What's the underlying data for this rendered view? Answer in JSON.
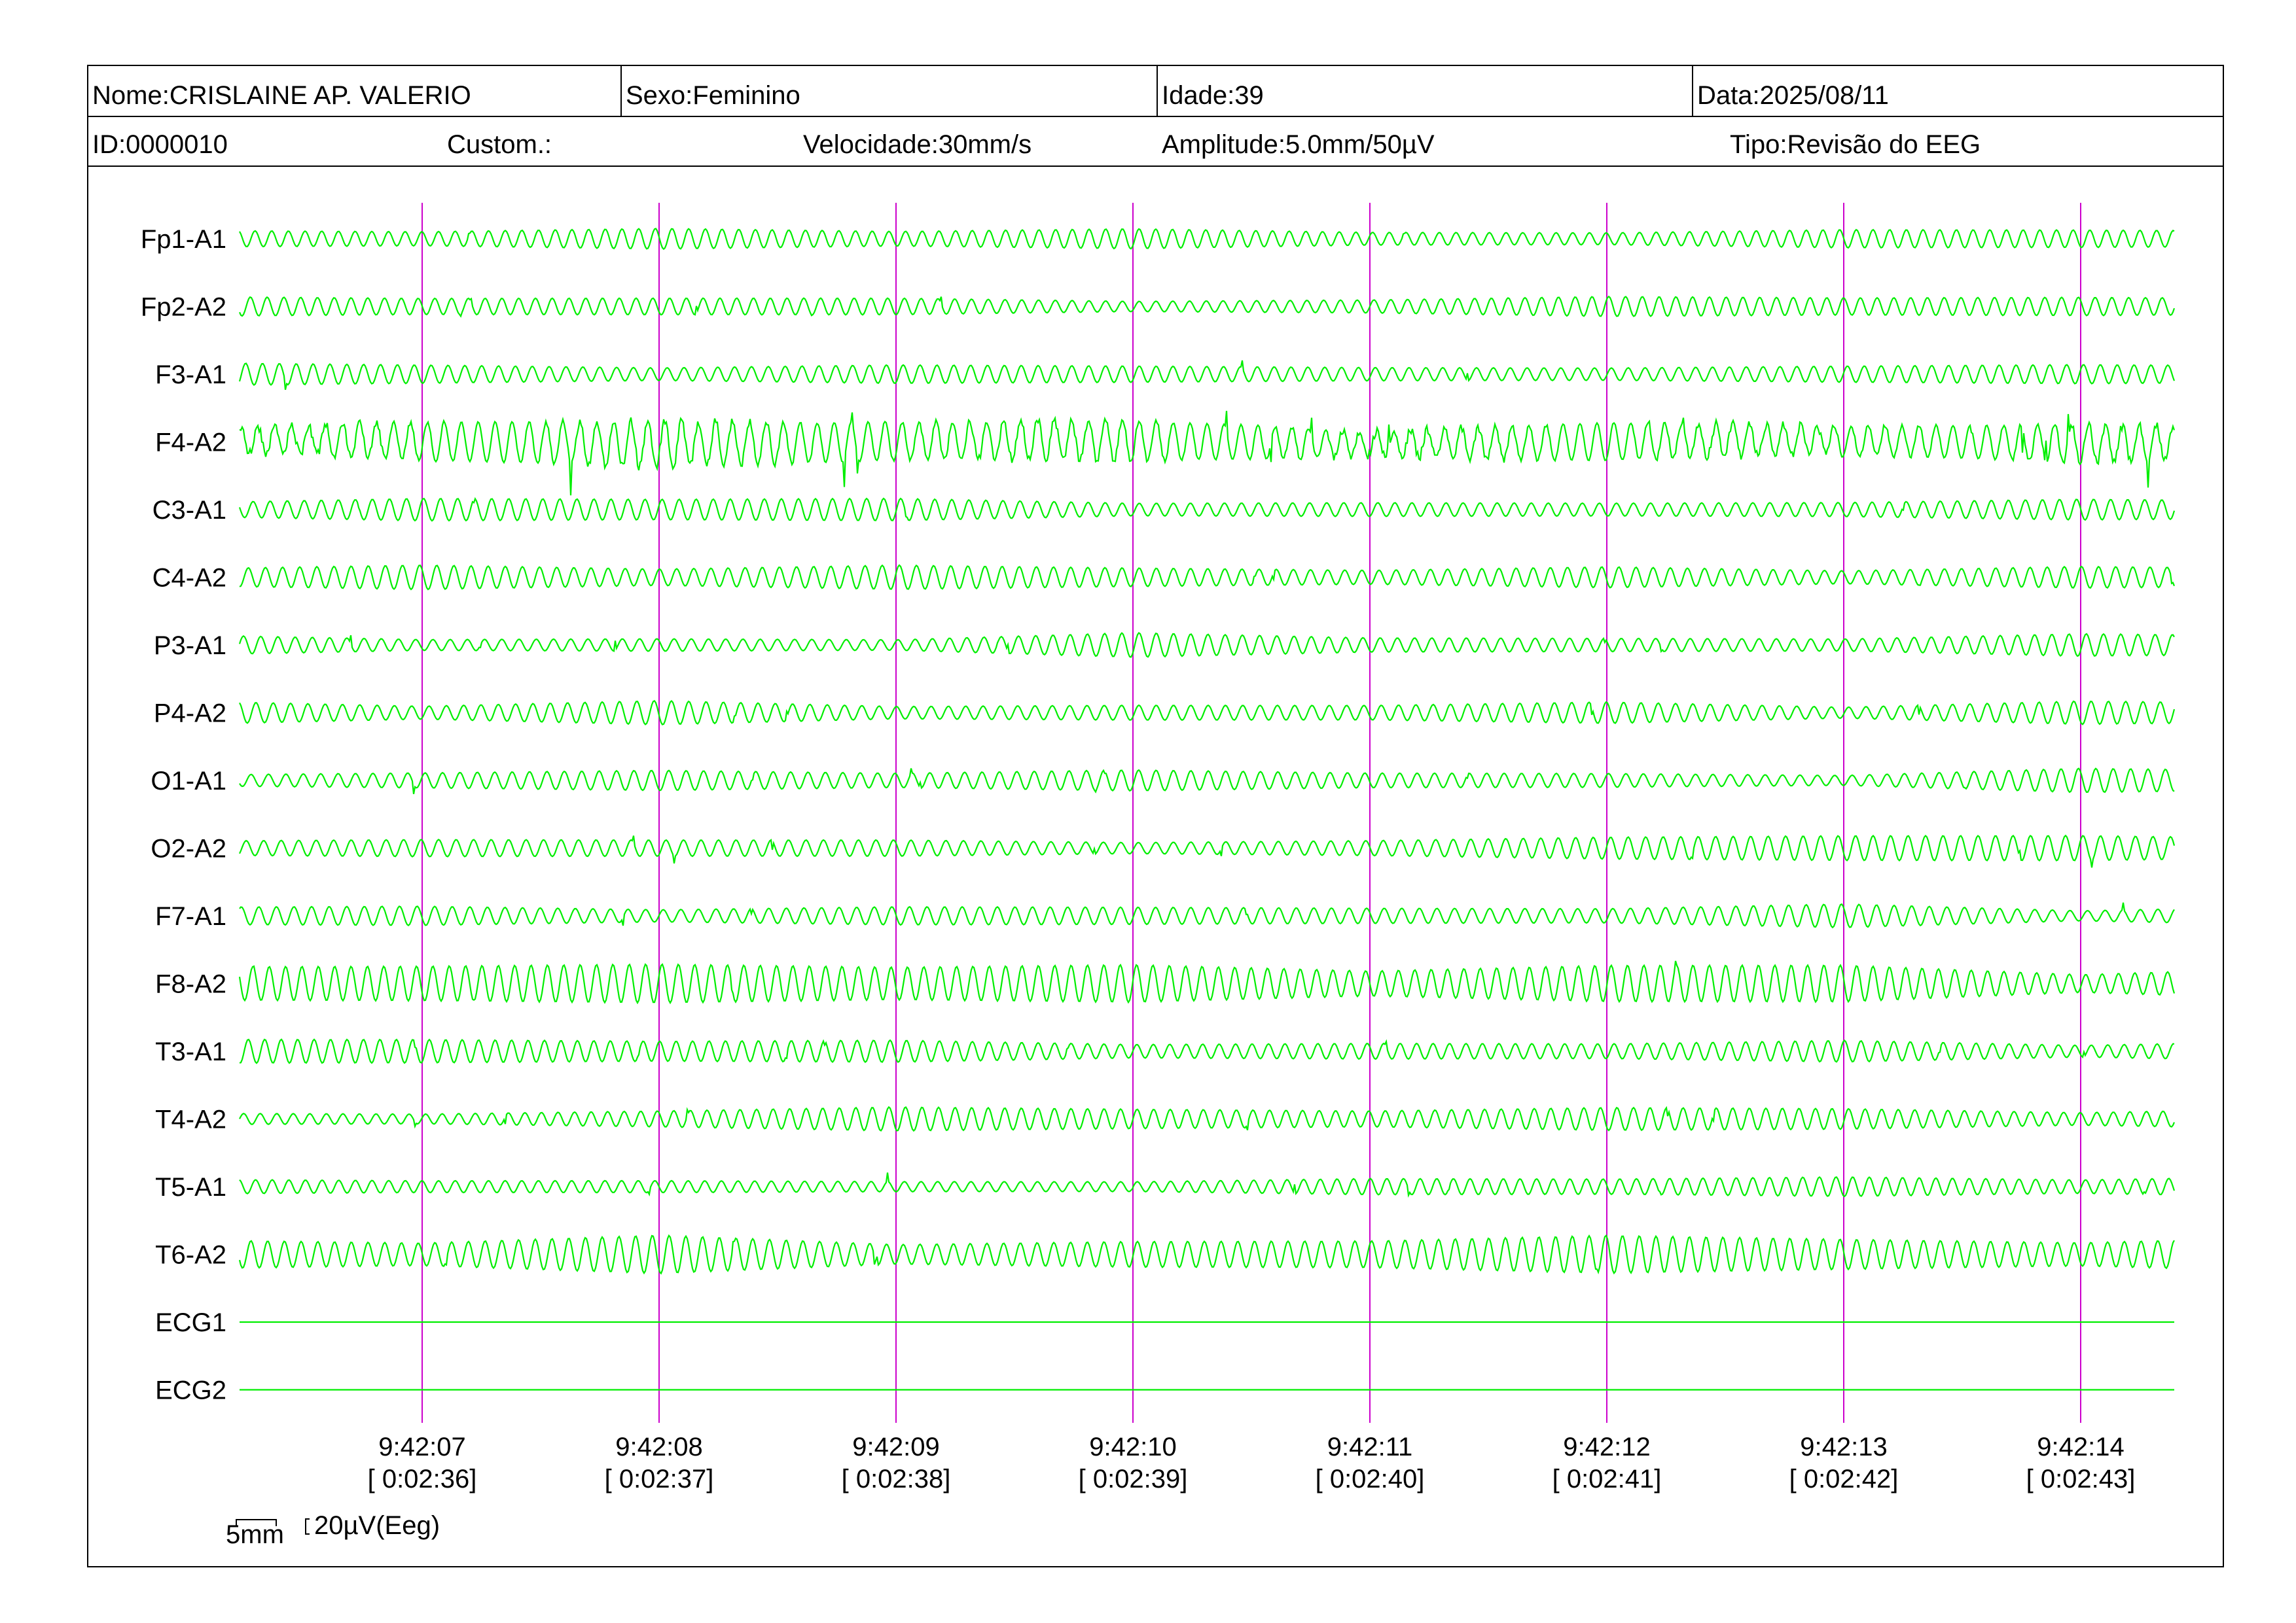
{
  "header": {
    "name": "Nome:CRISLAINE AP. VALERIO",
    "sex": "Sexo:Feminino",
    "age": "Idade:39",
    "date": "Data:2025/08/11",
    "id": "ID:0000010",
    "custom": "Custom.:",
    "speed": "Velocidade:30mm/s",
    "amplitude": "Amplitude:5.0mm/50µV",
    "type": "Tipo:Revisão do EEG"
  },
  "scale": {
    "time_label": "5mm",
    "amp_label": "20µV(Eeg)"
  },
  "colors": {
    "trace": "#00ee00",
    "marker": "#cc00cc"
  },
  "chart_data": {
    "type": "line",
    "channels": [
      "Fp1-A1",
      "Fp2-A2",
      "F3-A1",
      "F4-A2",
      "C3-A1",
      "C4-A2",
      "P3-A1",
      "P4-A2",
      "O1-A1",
      "O2-A2",
      "F7-A1",
      "F8-A2",
      "T3-A1",
      "T4-A2",
      "T5-A1",
      "T6-A2",
      "ECG1",
      "ECG2"
    ],
    "time_markers": [
      {
        "clock": "9:42:07",
        "elapsed": "[ 0:02:36]"
      },
      {
        "clock": "9:42:08",
        "elapsed": "[ 0:02:37]"
      },
      {
        "clock": "9:42:09",
        "elapsed": "[ 0:02:38]"
      },
      {
        "clock": "9:42:10",
        "elapsed": "[ 0:02:39]"
      },
      {
        "clock": "9:42:11",
        "elapsed": "[ 0:02:40]"
      },
      {
        "clock": "9:42:12",
        "elapsed": "[ 0:02:41]"
      },
      {
        "clock": "9:42:13",
        "elapsed": "[ 0:02:42]"
      },
      {
        "clock": "9:42:14",
        "elapsed": "[ 0:02:43]"
      }
    ],
    "speed_mm_per_s": 30,
    "legend": "none",
    "grid": false
  }
}
